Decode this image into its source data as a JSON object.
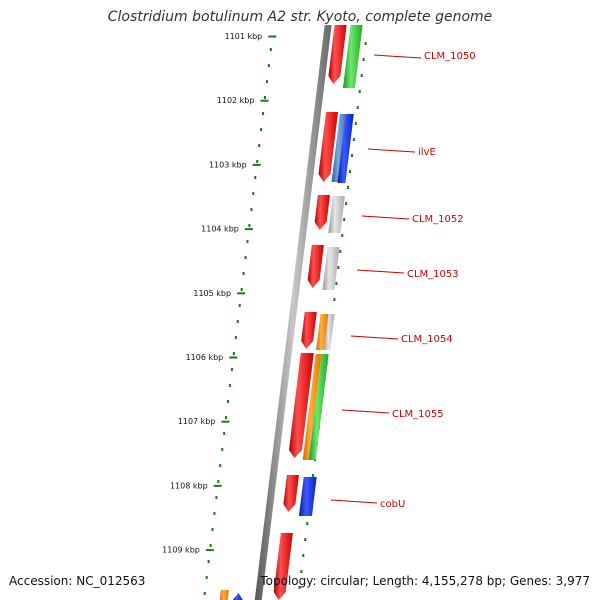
{
  "title": "Clostridium botulinum A2 str. Kyoto, complete genome",
  "accession": "Accession: NC_012563",
  "topology": "Topology: circular; Length: 4,155,278 bp; Genes: 3,977",
  "colors": {
    "backbone": "#888888",
    "tick": "#1a7a1a",
    "label": "#cc0000",
    "red": "#ee1111",
    "green": "#33cc33",
    "blue": "#1133ee",
    "steel": "#4a7ab8",
    "grey": "#b8b8b8",
    "orange": "#ff8c00"
  },
  "scale": [
    "1101 kbp",
    "1102 kbp",
    "1103 kbp",
    "1104 kbp",
    "1105 kbp",
    "1106 kbp",
    "1107 kbp",
    "1108 kbp",
    "1109 kbp"
  ],
  "genes": [
    {
      "label": "CLM_1050"
    },
    {
      "label": "ilvE"
    },
    {
      "label": "CLM_1052"
    },
    {
      "label": "CLM_1053"
    },
    {
      "label": "CLM_1054"
    },
    {
      "label": "CLM_1055"
    },
    {
      "label": "cobU"
    }
  ]
}
